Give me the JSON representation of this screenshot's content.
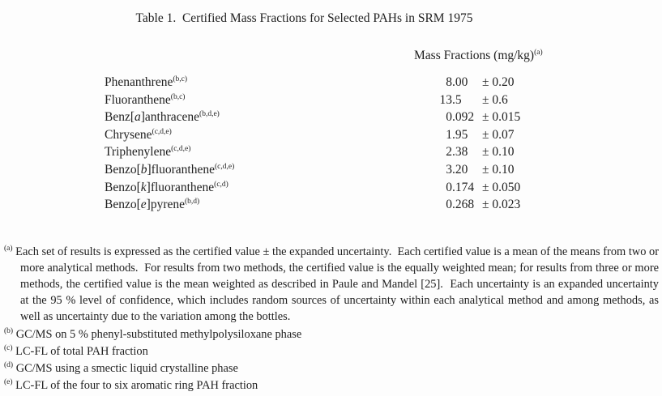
{
  "page": {
    "background_color": "#fdfdfd",
    "text_color": "#1f1f1f"
  },
  "title": "Table 1.  Certified Mass Fractions for Selected PAHs in SRM 1975",
  "table": {
    "column_header": {
      "text": "Mass Fractions (mg/kg)",
      "superscript": "(a)"
    },
    "rows": [
      {
        "name_pre": "Phenanthrene",
        "name_italic": "",
        "name_post": "",
        "superscript": "(b,c)",
        "value": "8.00",
        "value_int": "8",
        "value_frac": ".00",
        "uncertainty": "± 0.20"
      },
      {
        "name_pre": "Fluoranthene",
        "name_italic": "",
        "name_post": "",
        "superscript": "(b,c)",
        "value": "13.5",
        "value_int": "13",
        "value_frac": ".5",
        "uncertainty": "± 0.6"
      },
      {
        "name_pre": "Benz[",
        "name_italic": "a",
        "name_post": "]anthracene",
        "superscript": "(b,d,e)",
        "value": "0.092",
        "value_int": "0",
        "value_frac": ".092",
        "uncertainty": "± 0.015"
      },
      {
        "name_pre": "Chrysene",
        "name_italic": "",
        "name_post": "",
        "superscript": "(c,d,e)",
        "value": "1.95",
        "value_int": "1",
        "value_frac": ".95",
        "uncertainty": "± 0.07"
      },
      {
        "name_pre": "Triphenylene",
        "name_italic": "",
        "name_post": "",
        "superscript": "(c,d,e)",
        "value": "2.38",
        "value_int": "2",
        "value_frac": ".38",
        "uncertainty": "± 0.10"
      },
      {
        "name_pre": "Benzo[",
        "name_italic": "b",
        "name_post": "]fluoranthene",
        "superscript": "(c,d,e)",
        "value": "3.20",
        "value_int": "3",
        "value_frac": ".20",
        "uncertainty": "± 0.10"
      },
      {
        "name_pre": "Benzo[",
        "name_italic": "k",
        "name_post": "]fluoranthene",
        "superscript": "(c,d)",
        "value": "0.174",
        "value_int": "0",
        "value_frac": ".174",
        "uncertainty": "± 0.050"
      },
      {
        "name_pre": "Benzo[",
        "name_italic": "e",
        "name_post": "]pyrene",
        "superscript": "(b,d)",
        "value": "0.268",
        "value_int": "0",
        "value_frac": ".268",
        "uncertainty": "± 0.023"
      }
    ]
  },
  "footnotes": [
    {
      "label": "(a)",
      "text": "Each set of results is expressed as the certified value ± the expanded uncertainty.  Each certified value is a mean of the means from two or more analytical methods.  For results from two methods, the certified value is the equally weighted mean; for results from three or more methods, the certified value is the mean weighted as described in Paule and Mandel [25].  Each uncertainty is an expanded uncertainty at the 95 % level of confidence, which includes random sources of uncertainty within each analytical method and among methods, as well as uncertainty due to the variation among the bottles."
    },
    {
      "label": "(b)",
      "text": "GC/MS on 5 % phenyl-substituted methylpolysiloxane phase"
    },
    {
      "label": "(c)",
      "text": "LC-FL of total PAH fraction"
    },
    {
      "label": "(d)",
      "text": "GC/MS using a smectic liquid crystalline phase"
    },
    {
      "label": "(e)",
      "text": "LC-FL of the four to six aromatic ring PAH fraction"
    }
  ]
}
